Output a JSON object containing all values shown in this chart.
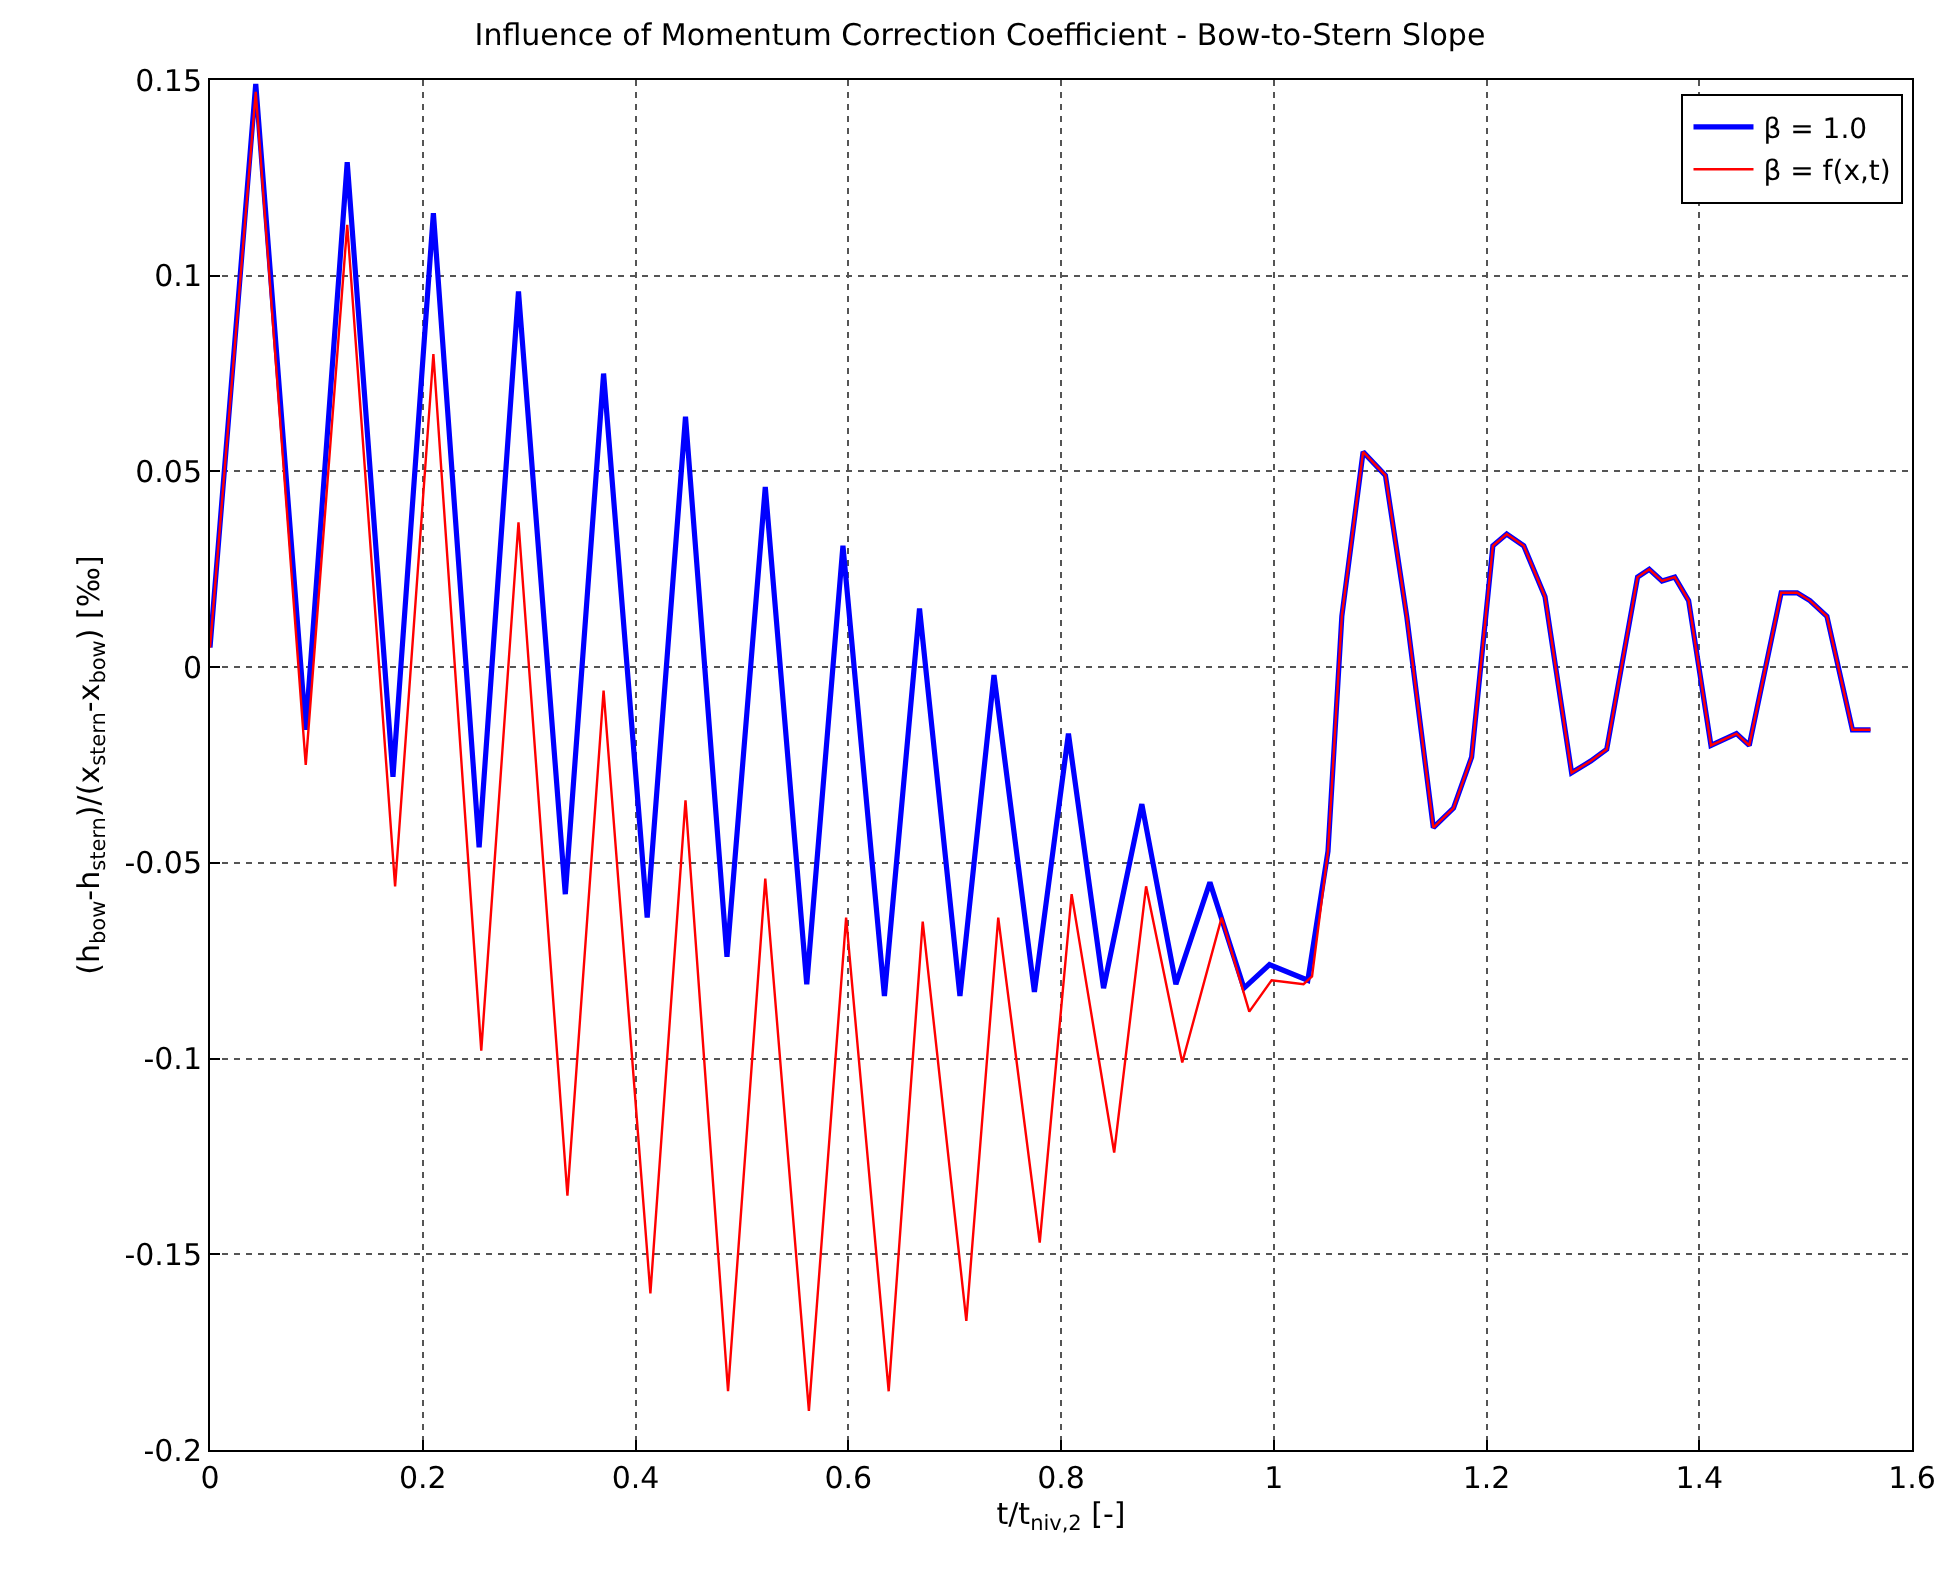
{
  "chart_data": {
    "type": "line",
    "title": "Influence of Momentum Correction Coefficient - Bow-to-Stern Slope",
    "xlabel": "t/t$_{niv,2}$ [-]",
    "ylabel": "(h$_{bow}$-h$_{stern}$)/(x$_{stern}$-x$_{bow}$) [‰]",
    "xlim": [
      0,
      1.6
    ],
    "xticks": [
      0,
      0.2,
      0.4,
      0.6,
      0.8,
      1,
      1.2,
      1.4,
      1.6
    ],
    "ylim": [
      -0.2,
      0.15
    ],
    "yticks": [
      -0.2,
      -0.15,
      -0.1,
      -0.05,
      0,
      0.05,
      0.1,
      0.15
    ],
    "grid": true,
    "legend": "top right",
    "marker": "none",
    "line_style": "solid",
    "series": [
      {
        "name": "β = 1.0",
        "color": "#0000ff",
        "x": [
          0,
          0.043,
          0.09,
          0.129,
          0.172,
          0.21,
          0.253,
          0.29,
          0.334,
          0.37,
          0.411,
          0.447,
          0.486,
          0.522,
          0.561,
          0.595,
          0.634,
          0.667,
          0.705,
          0.737,
          0.775,
          0.807,
          0.84,
          0.876,
          0.908,
          0.94,
          0.972,
          0.996,
          1.032,
          1.051,
          1.064,
          1.084,
          1.105,
          1.125,
          1.15,
          1.169,
          1.186,
          1.206,
          1.219,
          1.235,
          1.255,
          1.28,
          1.298,
          1.313,
          1.342,
          1.353,
          1.365,
          1.377,
          1.39,
          1.411,
          1.435,
          1.447,
          1.477,
          1.492,
          1.504,
          1.52,
          1.544,
          1.561
        ],
        "values": [
          0.005,
          0.149,
          -0.016,
          0.129,
          -0.028,
          0.116,
          -0.046,
          0.096,
          -0.058,
          0.075,
          -0.064,
          0.064,
          -0.074,
          0.046,
          -0.081,
          0.031,
          -0.084,
          0.015,
          -0.084,
          -0.002,
          -0.083,
          -0.017,
          -0.082,
          -0.035,
          -0.081,
          -0.055,
          -0.082,
          -0.076,
          -0.08,
          -0.047,
          0.013,
          0.055,
          0.049,
          0.013,
          -0.041,
          -0.036,
          -0.023,
          0.031,
          0.034,
          0.031,
          0.018,
          -0.027,
          -0.024,
          -0.021,
          0.023,
          0.025,
          0.022,
          0.023,
          0.017,
          -0.02,
          -0.017,
          -0.02,
          0.019,
          0.019,
          0.017,
          0.013,
          -0.016,
          -0.016
        ]
      },
      {
        "name": "β = f(x,t)",
        "color": "#ff0000",
        "x": [
          0,
          0.043,
          0.09,
          0.129,
          0.174,
          0.21,
          0.255,
          0.29,
          0.336,
          0.37,
          0.414,
          0.447,
          0.487,
          0.522,
          0.563,
          0.598,
          0.638,
          0.67,
          0.711,
          0.741,
          0.78,
          0.81,
          0.85,
          0.88,
          0.914,
          0.951,
          0.977,
          0.998,
          1.028,
          1.036,
          1.051,
          1.064,
          1.084,
          1.105,
          1.125,
          1.15,
          1.169,
          1.186,
          1.206,
          1.219,
          1.235,
          1.255,
          1.28,
          1.298,
          1.313,
          1.342,
          1.353,
          1.365,
          1.377,
          1.39,
          1.411,
          1.435,
          1.447,
          1.477,
          1.492,
          1.504,
          1.52,
          1.544,
          1.561
        ],
        "values": [
          0.005,
          0.147,
          -0.025,
          0.113,
          -0.056,
          0.08,
          -0.098,
          0.037,
          -0.135,
          -0.006,
          -0.16,
          -0.034,
          -0.185,
          -0.054,
          -0.19,
          -0.064,
          -0.185,
          -0.065,
          -0.167,
          -0.064,
          -0.147,
          -0.058,
          -0.124,
          -0.056,
          -0.101,
          -0.064,
          -0.088,
          -0.08,
          -0.081,
          -0.079,
          -0.047,
          0.013,
          0.055,
          0.049,
          0.013,
          -0.041,
          -0.036,
          -0.023,
          0.031,
          0.034,
          0.031,
          0.018,
          -0.027,
          -0.024,
          -0.021,
          0.023,
          0.025,
          0.022,
          0.023,
          0.017,
          -0.02,
          -0.017,
          -0.02,
          0.019,
          0.019,
          0.017,
          0.013,
          -0.016,
          -0.016
        ]
      }
    ]
  }
}
